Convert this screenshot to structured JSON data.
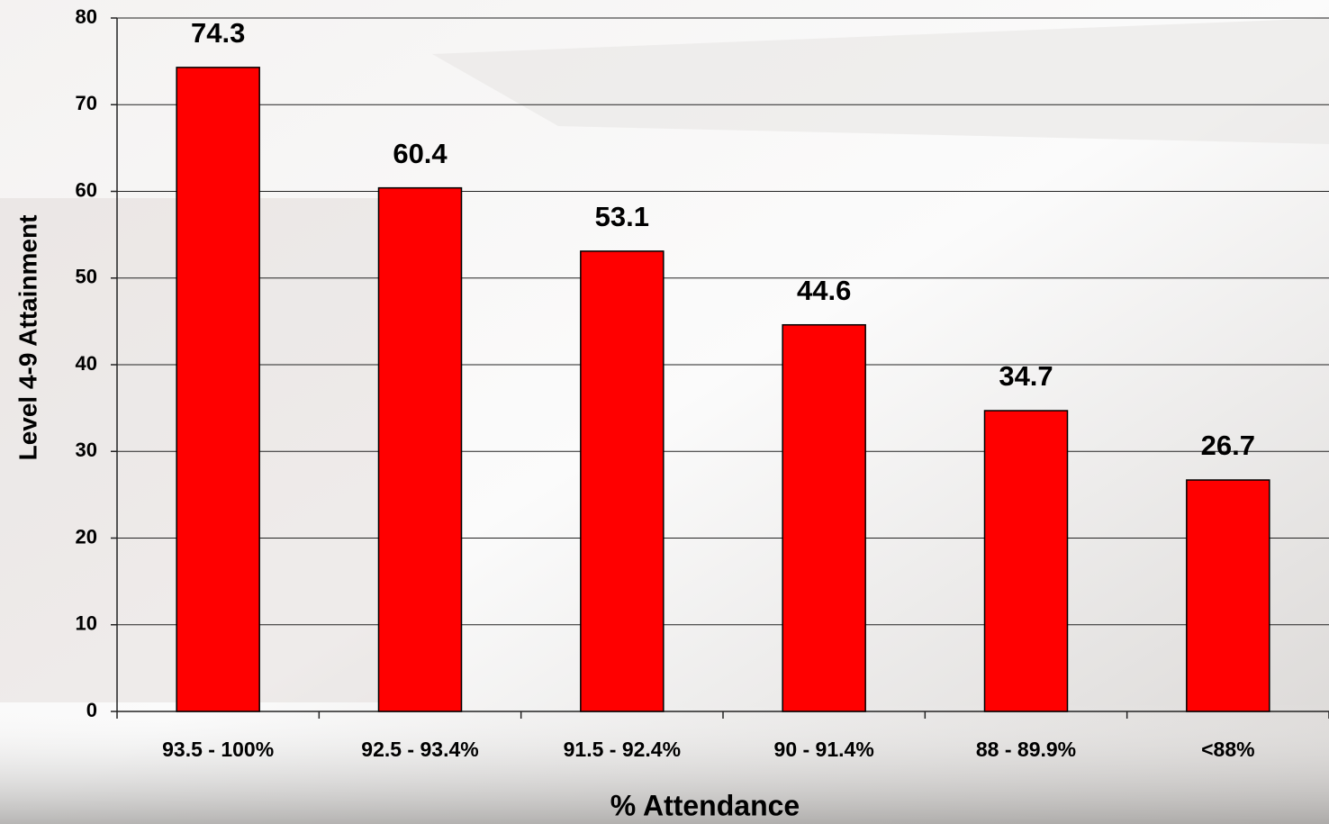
{
  "chart_data": {
    "type": "bar",
    "x_label": "% Attendance",
    "y_label": "Level 4-9 Attainment",
    "categories": [
      "93.5 - 100%",
      "92.5 - 93.4%",
      "91.5 - 92.4%",
      "90 - 91.4%",
      "88 - 89.9%",
      "<88%"
    ],
    "values": [
      74.3,
      60.4,
      53.1,
      44.6,
      34.7,
      26.7
    ],
    "color": "#ff0000",
    "ylim": [
      0,
      80
    ],
    "yticks": [
      0,
      10,
      20,
      30,
      40,
      50,
      60,
      70,
      80
    ],
    "grid": true
  }
}
